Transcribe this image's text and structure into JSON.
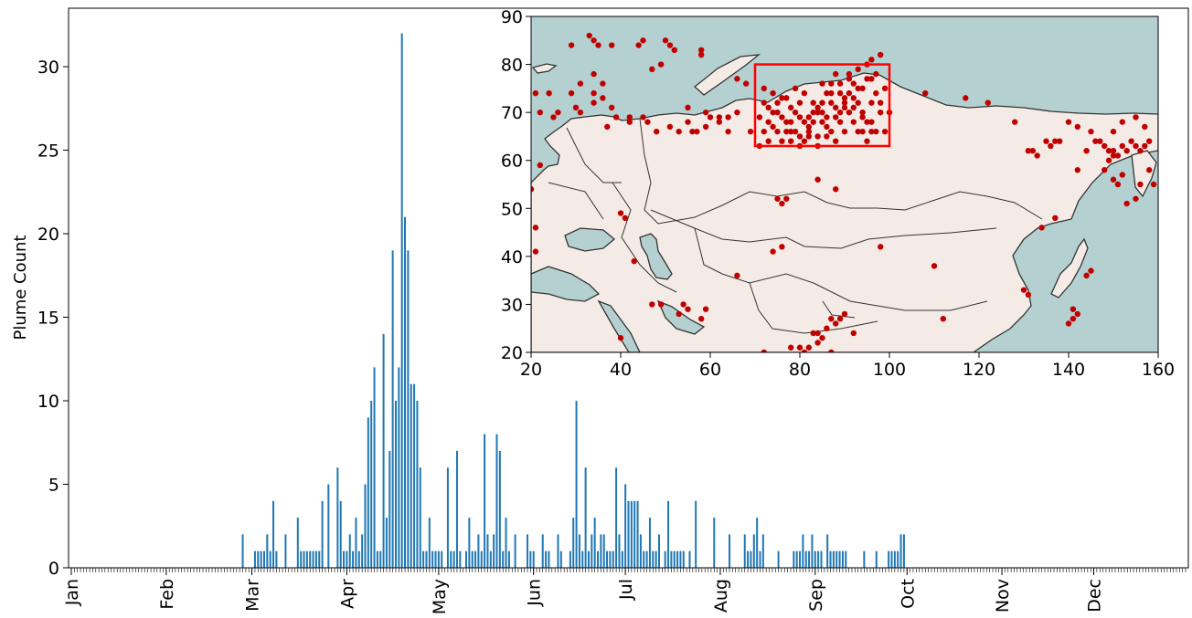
{
  "chart_data": [
    {
      "type": "bar",
      "ylabel": "Plume Count",
      "xlabel": "",
      "ylim": [
        0,
        33.5
      ],
      "yticks": [
        0,
        5,
        10,
        15,
        20,
        25,
        30
      ],
      "x_range_days": [
        1,
        365
      ],
      "month_ticks": [
        {
          "label": "Jan",
          "day": 1
        },
        {
          "label": "Feb",
          "day": 32
        },
        {
          "label": "Mar",
          "day": 60
        },
        {
          "label": "Apr",
          "day": 91
        },
        {
          "label": "May",
          "day": 121
        },
        {
          "label": "Jun",
          "day": 152
        },
        {
          "label": "Jul",
          "day": 182
        },
        {
          "label": "Aug",
          "day": 213
        },
        {
          "label": "Sep",
          "day": 244
        },
        {
          "label": "Oct",
          "day": 274
        },
        {
          "label": "Nov",
          "day": 305
        },
        {
          "label": "Dec",
          "day": 335
        }
      ],
      "bar_color": "#1f77b4",
      "days": [
        57,
        61,
        62,
        63,
        64,
        65,
        66,
        67,
        68,
        71,
        75,
        76,
        77,
        78,
        79,
        80,
        81,
        82,
        83,
        85,
        88,
        89,
        90,
        91,
        92,
        93,
        94,
        95,
        96,
        97,
        98,
        99,
        100,
        101,
        102,
        103,
        104,
        105,
        106,
        107,
        108,
        109,
        110,
        111,
        112,
        113,
        114,
        115,
        116,
        117,
        118,
        119,
        120,
        121,
        122,
        124,
        125,
        126,
        127,
        128,
        130,
        131,
        132,
        133,
        134,
        135,
        136,
        137,
        138,
        139,
        140,
        141,
        142,
        143,
        144,
        146,
        150,
        151,
        152,
        155,
        156,
        157,
        160,
        161,
        164,
        165,
        166,
        167,
        168,
        169,
        170,
        171,
        172,
        173,
        174,
        175,
        176,
        177,
        178,
        179,
        180,
        181,
        182,
        183,
        184,
        185,
        186,
        187,
        188,
        189,
        190,
        191,
        192,
        193,
        195,
        196,
        197,
        198,
        199,
        200,
        201,
        203,
        205,
        211,
        216,
        221,
        222,
        223,
        224,
        225,
        226,
        227,
        232,
        237,
        238,
        239,
        240,
        241,
        242,
        243,
        244,
        245,
        246,
        248,
        249,
        250,
        251,
        252,
        253,
        254,
        260,
        264,
        268,
        269,
        270,
        271,
        272,
        273
      ],
      "values": [
        2,
        1,
        1,
        1,
        1,
        2,
        1,
        4,
        1,
        2,
        3,
        1,
        1,
        1,
        1,
        1,
        1,
        1,
        4,
        5,
        6,
        4,
        1,
        1,
        2,
        1,
        3,
        1,
        2,
        5,
        9,
        10,
        12,
        1,
        1,
        14,
        3,
        7,
        19,
        10,
        12,
        32,
        21,
        19,
        11,
        11,
        10,
        6,
        1,
        1,
        3,
        1,
        1,
        1,
        1,
        6,
        1,
        1,
        7,
        1,
        1,
        3,
        1,
        1,
        2,
        1,
        8,
        2,
        1,
        2,
        8,
        7,
        1,
        3,
        1,
        2,
        2,
        1,
        1,
        2,
        1,
        1,
        2,
        1,
        1,
        3,
        10,
        2,
        1,
        6,
        1,
        2,
        3,
        1,
        2,
        2,
        1,
        1,
        1,
        6,
        2,
        1,
        5,
        4,
        4,
        4,
        4,
        2,
        1,
        1,
        3,
        1,
        1,
        2,
        1,
        4,
        1,
        1,
        1,
        1,
        1,
        1,
        4,
        3,
        2,
        2,
        1,
        1,
        2,
        3,
        1,
        2,
        1,
        1,
        1,
        1,
        2,
        1,
        1,
        2,
        1,
        1,
        1,
        2,
        1,
        1,
        1,
        1,
        1,
        1,
        1,
        1,
        1,
        1,
        1,
        1,
        2,
        2
      ]
    },
    {
      "type": "scatter",
      "title": "",
      "xlim": [
        20,
        160
      ],
      "ylim": [
        20,
        90
      ],
      "xticks": [
        20,
        40,
        60,
        80,
        100,
        120,
        140,
        160
      ],
      "yticks": [
        20,
        30,
        40,
        50,
        60,
        70,
        80,
        90
      ],
      "point_color": "#c00000",
      "land_color": "#f5ebe6",
      "ocean_color": "#b5d0d0",
      "highlight_box": {
        "lon": [
          70,
          100
        ],
        "lat": [
          63,
          80
        ],
        "color": "#ff0000"
      },
      "points": [
        [
          29,
          84
        ],
        [
          33,
          86
        ],
        [
          34,
          85
        ],
        [
          35,
          84
        ],
        [
          38,
          84
        ],
        [
          44,
          84
        ],
        [
          45,
          85
        ],
        [
          50,
          85
        ],
        [
          51,
          84
        ],
        [
          52,
          83
        ],
        [
          58,
          83
        ],
        [
          58,
          82
        ],
        [
          47,
          79
        ],
        [
          34,
          78
        ],
        [
          36,
          76
        ],
        [
          31,
          76
        ],
        [
          24,
          74
        ],
        [
          21,
          74
        ],
        [
          29,
          74
        ],
        [
          34,
          74
        ],
        [
          34,
          72
        ],
        [
          36,
          73
        ],
        [
          30,
          71
        ],
        [
          26,
          70
        ],
        [
          22,
          70
        ],
        [
          25,
          69
        ],
        [
          31,
          70
        ],
        [
          38,
          71
        ],
        [
          39,
          69
        ],
        [
          37,
          67
        ],
        [
          42,
          68
        ],
        [
          45,
          69
        ],
        [
          46,
          68
        ],
        [
          48,
          66
        ],
        [
          51,
          67
        ],
        [
          53,
          66
        ],
        [
          55,
          68
        ],
        [
          56,
          66
        ],
        [
          57,
          66
        ],
        [
          59,
          67
        ],
        [
          60,
          69
        ],
        [
          62,
          69
        ],
        [
          64,
          66
        ],
        [
          66,
          77
        ],
        [
          68,
          76
        ],
        [
          59,
          70
        ],
        [
          62,
          68
        ],
        [
          64,
          69
        ],
        [
          69,
          66
        ],
        [
          66,
          70
        ],
        [
          49,
          80
        ],
        [
          42,
          69
        ],
        [
          55,
          71
        ],
        [
          71,
          63
        ],
        [
          72,
          66
        ],
        [
          73,
          68
        ],
        [
          74,
          70
        ],
        [
          75,
          72
        ],
        [
          76,
          64
        ],
        [
          77,
          66
        ],
        [
          78,
          68
        ],
        [
          79,
          70
        ],
        [
          80,
          72
        ],
        [
          81,
          64
        ],
        [
          82,
          66
        ],
        [
          83,
          68
        ],
        [
          84,
          70
        ],
        [
          85,
          72
        ],
        [
          86,
          74
        ],
        [
          87,
          76
        ],
        [
          88,
          78
        ],
        [
          89,
          70
        ],
        [
          90,
          72
        ],
        [
          91,
          74
        ],
        [
          92,
          76
        ],
        [
          93,
          72
        ],
        [
          94,
          70
        ],
        [
          95,
          68
        ],
        [
          96,
          72
        ],
        [
          97,
          74
        ],
        [
          98,
          70
        ],
        [
          99,
          66
        ],
        [
          72,
          75
        ],
        [
          74,
          74
        ],
        [
          76,
          73
        ],
        [
          78,
          71
        ],
        [
          80,
          69
        ],
        [
          82,
          67
        ],
        [
          84,
          65
        ],
        [
          86,
          67
        ],
        [
          88,
          69
        ],
        [
          90,
          71
        ],
        [
          92,
          73
        ],
        [
          94,
          75
        ],
        [
          96,
          77
        ],
        [
          73,
          64
        ],
        [
          75,
          66
        ],
        [
          77,
          68
        ],
        [
          79,
          66
        ],
        [
          81,
          68
        ],
        [
          83,
          70
        ],
        [
          85,
          68
        ],
        [
          87,
          66
        ],
        [
          89,
          68
        ],
        [
          91,
          70
        ],
        [
          93,
          66
        ],
        [
          95,
          64
        ],
        [
          97,
          66
        ],
        [
          78,
          64
        ],
        [
          80,
          63
        ],
        [
          82,
          65
        ],
        [
          84,
          63
        ],
        [
          86,
          65
        ],
        [
          88,
          64
        ],
        [
          90,
          66
        ],
        [
          92,
          68
        ],
        [
          94,
          66
        ],
        [
          96,
          68
        ],
        [
          98,
          72
        ],
        [
          85,
          76
        ],
        [
          87,
          74
        ],
        [
          89,
          76
        ],
        [
          91,
          78
        ],
        [
          93,
          79
        ],
        [
          95,
          80
        ],
        [
          96,
          81
        ],
        [
          98,
          82
        ],
        [
          91,
          77
        ],
        [
          93,
          75
        ],
        [
          89,
          74
        ],
        [
          87,
          72
        ],
        [
          85,
          70
        ],
        [
          83,
          72
        ],
        [
          81,
          74
        ],
        [
          79,
          75
        ],
        [
          77,
          73
        ],
        [
          75,
          70
        ],
        [
          73,
          71
        ],
        [
          71,
          69
        ],
        [
          72,
          72
        ],
        [
          74,
          67
        ],
        [
          76,
          69
        ],
        [
          78,
          66
        ],
        [
          80,
          65
        ],
        [
          82,
          69
        ],
        [
          84,
          71
        ],
        [
          86,
          69
        ],
        [
          88,
          71
        ],
        [
          90,
          73
        ],
        [
          92,
          71
        ],
        [
          94,
          69
        ],
        [
          96,
          66
        ],
        [
          100,
          70
        ],
        [
          99,
          75
        ],
        [
          97,
          78
        ],
        [
          95,
          77
        ],
        [
          84,
          56
        ],
        [
          88,
          54
        ],
        [
          75,
          52
        ],
        [
          76,
          51
        ],
        [
          77,
          52
        ],
        [
          98,
          42
        ],
        [
          110,
          38
        ],
        [
          112,
          27
        ],
        [
          108,
          74
        ],
        [
          117,
          73
        ],
        [
          122,
          72
        ],
        [
          128,
          68
        ],
        [
          131,
          62
        ],
        [
          132,
          62
        ],
        [
          133,
          61
        ],
        [
          135,
          64
        ],
        [
          136,
          63
        ],
        [
          137,
          64
        ],
        [
          138,
          64
        ],
        [
          140,
          68
        ],
        [
          142,
          67
        ],
        [
          145,
          66
        ],
        [
          146,
          64
        ],
        [
          147,
          64
        ],
        [
          148,
          63
        ],
        [
          149,
          62
        ],
        [
          150,
          62
        ],
        [
          150,
          61
        ],
        [
          151,
          61
        ],
        [
          152,
          63
        ],
        [
          153,
          62
        ],
        [
          154,
          64
        ],
        [
          155,
          63
        ],
        [
          156,
          62
        ],
        [
          157,
          63
        ],
        [
          158,
          64
        ],
        [
          152,
          68
        ],
        [
          155,
          69
        ],
        [
          157,
          67
        ],
        [
          150,
          66
        ],
        [
          149,
          60
        ],
        [
          150,
          56
        ],
        [
          151,
          55
        ],
        [
          156,
          55
        ],
        [
          158,
          58
        ],
        [
          159,
          55
        ],
        [
          153,
          51
        ],
        [
          155,
          52
        ],
        [
          152,
          57
        ],
        [
          148,
          58
        ],
        [
          144,
          62
        ],
        [
          142,
          58
        ],
        [
          137,
          48
        ],
        [
          134,
          46
        ],
        [
          131,
          32
        ],
        [
          130,
          33
        ],
        [
          144,
          36
        ],
        [
          145,
          37
        ],
        [
          141,
          29
        ],
        [
          140,
          26
        ],
        [
          141,
          27
        ],
        [
          142,
          28
        ],
        [
          66,
          36
        ],
        [
          74,
          41
        ],
        [
          76,
          42
        ],
        [
          47,
          30
        ],
        [
          49,
          30
        ],
        [
          54,
          30
        ],
        [
          53,
          28
        ],
        [
          55,
          29
        ],
        [
          59,
          29
        ],
        [
          43,
          39
        ],
        [
          41,
          48
        ],
        [
          40,
          49
        ],
        [
          40,
          23
        ],
        [
          21,
          41
        ],
        [
          20,
          54
        ],
        [
          22,
          59
        ],
        [
          78,
          21
        ],
        [
          80,
          21
        ],
        [
          81,
          20
        ],
        [
          82,
          21
        ],
        [
          83,
          24
        ],
        [
          84,
          24
        ],
        [
          86,
          25
        ],
        [
          87,
          27
        ],
        [
          88,
          26
        ],
        [
          89,
          27
        ],
        [
          90,
          28
        ],
        [
          92,
          24
        ],
        [
          85,
          23
        ],
        [
          84,
          22
        ],
        [
          87,
          20
        ],
        [
          58,
          27
        ],
        [
          72,
          20
        ],
        [
          21,
          46
        ]
      ]
    }
  ]
}
